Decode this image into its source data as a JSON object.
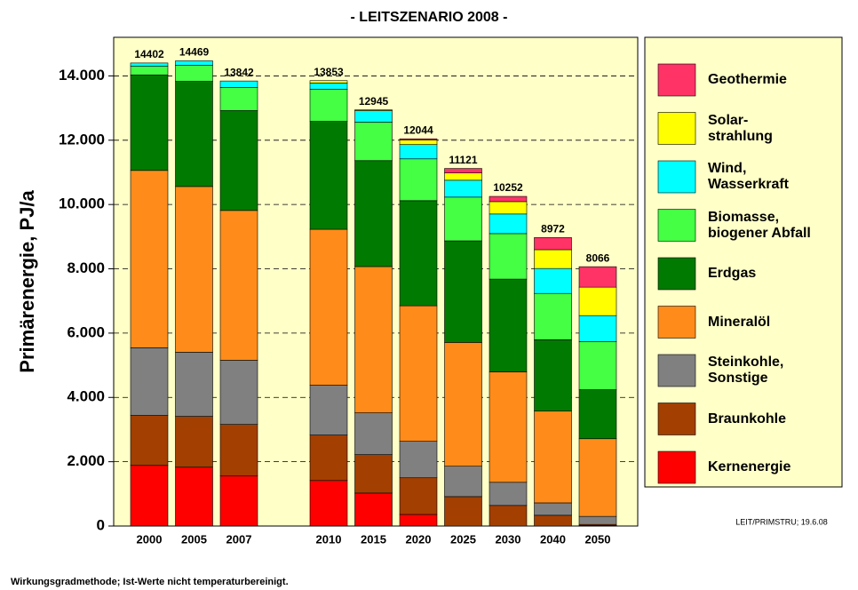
{
  "chart_data": {
    "type": "bar",
    "stacked": true,
    "title": "- LEITSZENARIO 2008 -",
    "y_label": "Primärenergie, PJ/a",
    "footnote": "Wirkungsgradmethode; Ist-Werte nicht temperaturbereinigt.",
    "source_note": "LEIT/PRIMSTRU; 19.6.08",
    "categories": [
      "2000",
      "2005",
      "2007",
      null,
      "2010",
      "2015",
      "2020",
      "2025",
      "2030",
      "2040",
      "2050"
    ],
    "totals": [
      14402,
      14469,
      13842,
      null,
      13853,
      12945,
      12044,
      11121,
      10252,
      8972,
      8066
    ],
    "series": [
      {
        "name": "Kernenergie",
        "color": "#ff0000",
        "values": [
          1885,
          1830,
          1555,
          null,
          1415,
          1025,
          360,
          0,
          0,
          0,
          20
        ]
      },
      {
        "name": "Braunkohle",
        "color": "#a33f00",
        "values": [
          1555,
          1580,
          1605,
          null,
          1415,
          1195,
          1140,
          915,
          640,
          335,
          30
        ]
      },
      {
        "name": "Steinkohle,\nSonstige",
        "color": "#808080",
        "values": [
          2105,
          1995,
          1995,
          null,
          1550,
          1300,
          1135,
          945,
          720,
          385,
          250
        ]
      },
      {
        "name": "Mineralöl",
        "color": "#ff8c1a",
        "values": [
          5515,
          5155,
          4660,
          null,
          4850,
          4550,
          4215,
          3850,
          3435,
          2855,
          2415
        ]
      },
      {
        "name": "Erdgas",
        "color": "#007a00",
        "values": [
          2970,
          3270,
          3105,
          null,
          3355,
          3295,
          3270,
          3160,
          2885,
          2220,
          1525
        ]
      },
      {
        "name": "Biomasse,\nbiogener Abfall",
        "color": "#44ff44",
        "values": [
          270,
          500,
          720,
          null,
          1000,
          1195,
          1300,
          1360,
          1415,
          1440,
          1500
        ]
      },
      {
        "name": "Wind,\nWasserkraft",
        "color": "#00ffff",
        "values": [
          102,
          139,
          202,
          null,
          195,
          360,
          445,
          525,
          610,
          775,
          805
        ]
      },
      {
        "name": "Solar-\nstrahlung",
        "color": "#ffff00",
        "values": [
          0,
          0,
          0,
          null,
          73,
          25,
          140,
          225,
          385,
          585,
          885
        ]
      },
      {
        "name": "Geothermie",
        "color": "#ff3366",
        "values": [
          0,
          0,
          0,
          null,
          0,
          0,
          39,
          141,
          162,
          377,
          636
        ]
      }
    ],
    "ylim": [
      0,
      15200
    ],
    "yticks": [
      0,
      {
        "value": 2000,
        "label": "2.000"
      },
      {
        "value": 4000,
        "label": "4.000"
      },
      {
        "value": 6000,
        "label": "6.000"
      },
      {
        "value": 8000,
        "label": "8.000"
      },
      {
        "value": 10000,
        "label": "10.000"
      },
      {
        "value": 12000,
        "label": "12.000"
      },
      {
        "value": 14000,
        "label": "14.000"
      }
    ],
    "grid": true
  }
}
